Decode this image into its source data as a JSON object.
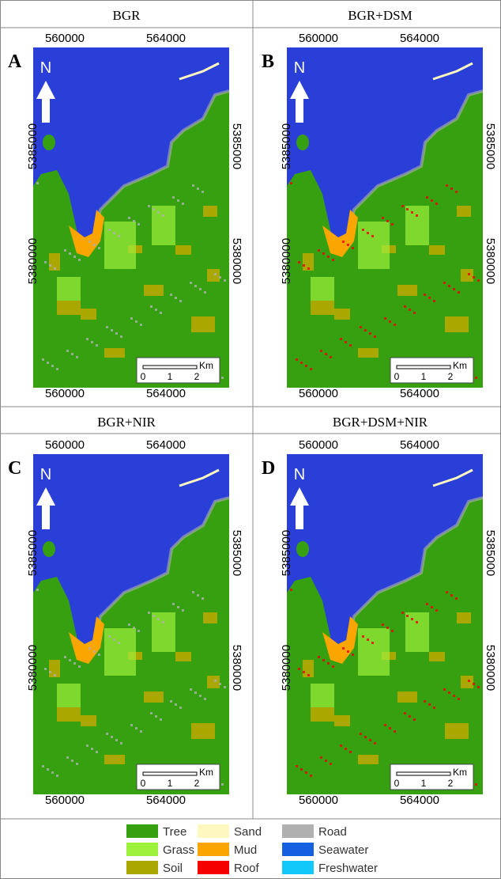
{
  "panels": [
    {
      "title": "BGR",
      "letter": "A",
      "x_labels_top": [
        "560000",
        "564000"
      ],
      "x_labels_bottom": [
        "560000",
        "564000"
      ],
      "y_labels_left": [
        "5385000",
        "5380000"
      ],
      "y_labels_right": [
        "5385000",
        "5380000"
      ],
      "north": "N",
      "scale_unit": "Km",
      "scale_ticks": [
        "0",
        "1",
        "2"
      ]
    },
    {
      "title": "BGR+DSM",
      "letter": "B",
      "x_labels_top": [
        "560000",
        "564000"
      ],
      "x_labels_bottom": [
        "560000",
        "564000"
      ],
      "y_labels_left": [
        "5385000",
        "5380000"
      ],
      "y_labels_right": [
        "5385000",
        "5380000"
      ],
      "north": "N",
      "scale_unit": "Km",
      "scale_ticks": [
        "0",
        "1",
        "2"
      ]
    },
    {
      "title": "BGR+NIR",
      "letter": "C",
      "x_labels_top": [
        "560000",
        "564000"
      ],
      "x_labels_bottom": [
        "560000",
        "564000"
      ],
      "y_labels_left": [
        "5385000",
        "5380000"
      ],
      "y_labels_right": [
        "5385000",
        "5380000"
      ],
      "north": "N",
      "scale_unit": "Km",
      "scale_ticks": [
        "0",
        "1",
        "2"
      ]
    },
    {
      "title": "BGR+DSM+NIR",
      "letter": "D",
      "x_labels_top": [
        "560000",
        "564000"
      ],
      "x_labels_bottom": [
        "560000",
        "564000"
      ],
      "y_labels_left": [
        "5385000",
        "5380000"
      ],
      "y_labels_right": [
        "5385000",
        "5380000"
      ],
      "north": "N",
      "scale_unit": "Km",
      "scale_ticks": [
        "0",
        "1",
        "2"
      ]
    }
  ],
  "legend": [
    {
      "label": "Tree",
      "color": "#36a010"
    },
    {
      "label": "Grass",
      "color": "#9df03c"
    },
    {
      "label": "Soil",
      "color": "#aaa800"
    },
    {
      "label": "Sand",
      "color": "#fdf8c0"
    },
    {
      "label": "Mud",
      "color": "#fba500"
    },
    {
      "label": "Roof",
      "color": "#f40000"
    },
    {
      "label": "Road",
      "color": "#b0b0b0"
    },
    {
      "label": "Seawater",
      "color": "#1560e0"
    },
    {
      "label": "Freshwater",
      "color": "#12c8fb"
    }
  ]
}
